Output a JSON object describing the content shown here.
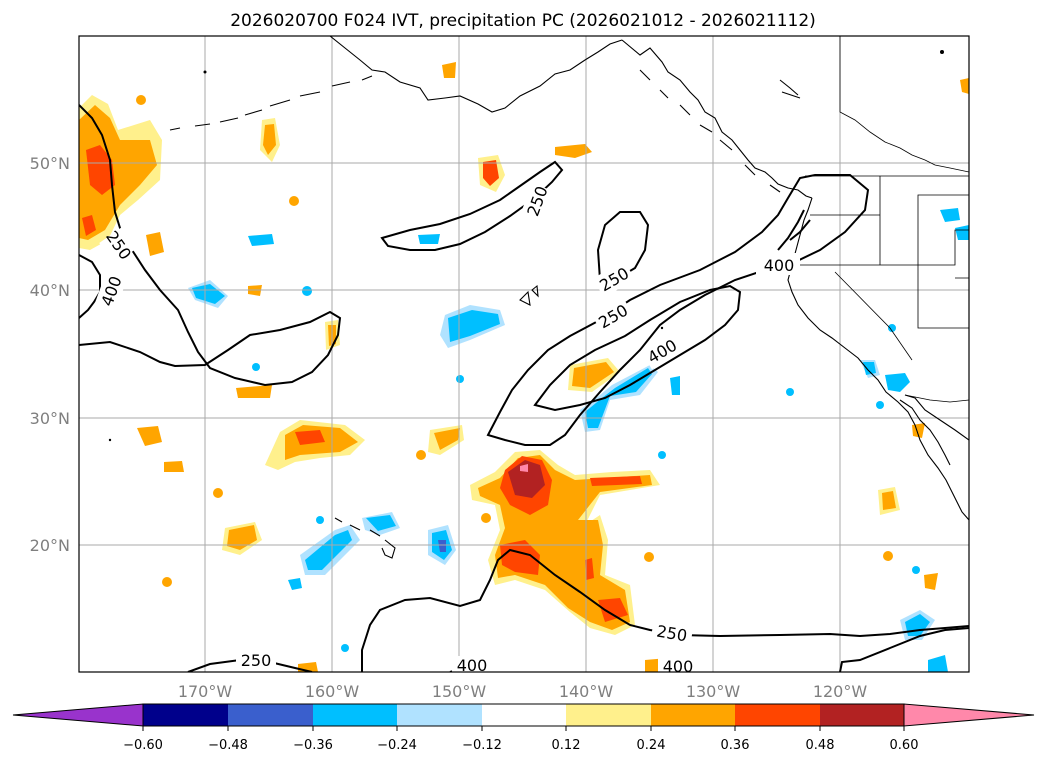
{
  "title": "2026020700 F024 IVT, precipitation PC (2026021012 - 2026021112)",
  "lat_labels": [
    "50°N",
    "40°N",
    "30°N",
    "20°N"
  ],
  "lon_labels": [
    "170°W",
    "160°W",
    "150°W",
    "140°W",
    "130°W",
    "120°W"
  ],
  "ivt_contours": {
    "labels": [
      "250",
      "400",
      "250",
      "400",
      "250",
      "250",
      "400",
      "400",
      "250",
      "250",
      "400"
    ]
  },
  "colorbar": {
    "tick_labels": [
      "−0.60",
      "−0.48",
      "−0.36",
      "−0.24",
      "−0.12",
      "0.12",
      "0.24",
      "0.36",
      "0.48",
      "0.60"
    ],
    "colors": [
      "#9933cc",
      "#00008b",
      "#3a5fcd",
      "#00bfff",
      "#b0e2ff",
      "#ffffff",
      "#fff08c",
      "#ffa500",
      "#ff4500",
      "#b22222",
      "#ff88aa"
    ]
  },
  "colors": {
    "pos1": "#fff08c",
    "pos2": "#ffa500",
    "pos3": "#ff4500",
    "pos4": "#b22222",
    "pos5": "#ff88aa",
    "neg1": "#b0e2ff",
    "neg2": "#00bfff",
    "neg3": "#3a5fcd"
  }
}
